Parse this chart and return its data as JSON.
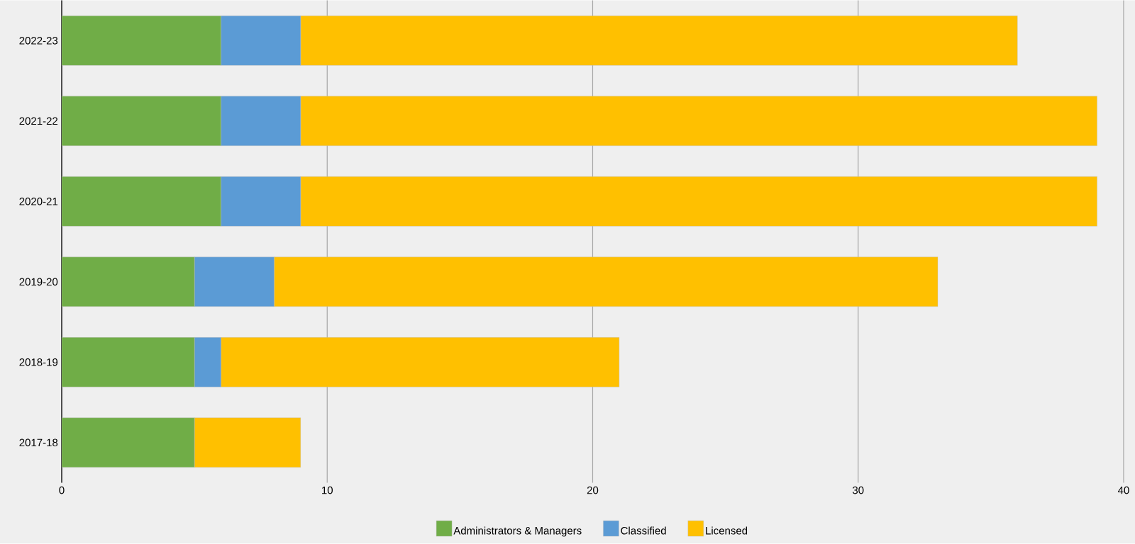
{
  "chart_data": {
    "type": "bar",
    "orientation": "horizontal",
    "stacked": true,
    "categories": [
      "2022-23",
      "2021-22",
      "2020-21",
      "2019-20",
      "2018-19",
      "2017-18"
    ],
    "series": [
      {
        "name": "Administrators & Managers",
        "color": "#70ad47",
        "values": [
          6,
          6,
          6,
          5,
          5,
          5
        ]
      },
      {
        "name": "Classified",
        "color": "#5b9bd5",
        "values": [
          3,
          3,
          3,
          3,
          1,
          0
        ]
      },
      {
        "name": "Licensed",
        "color": "#ffc000",
        "values": [
          27,
          30,
          30,
          25,
          15,
          4
        ]
      }
    ],
    "xlim": [
      0,
      40
    ],
    "xticks": [
      0,
      10,
      20,
      30,
      40
    ],
    "grid": "x",
    "legend": "bottom"
  }
}
